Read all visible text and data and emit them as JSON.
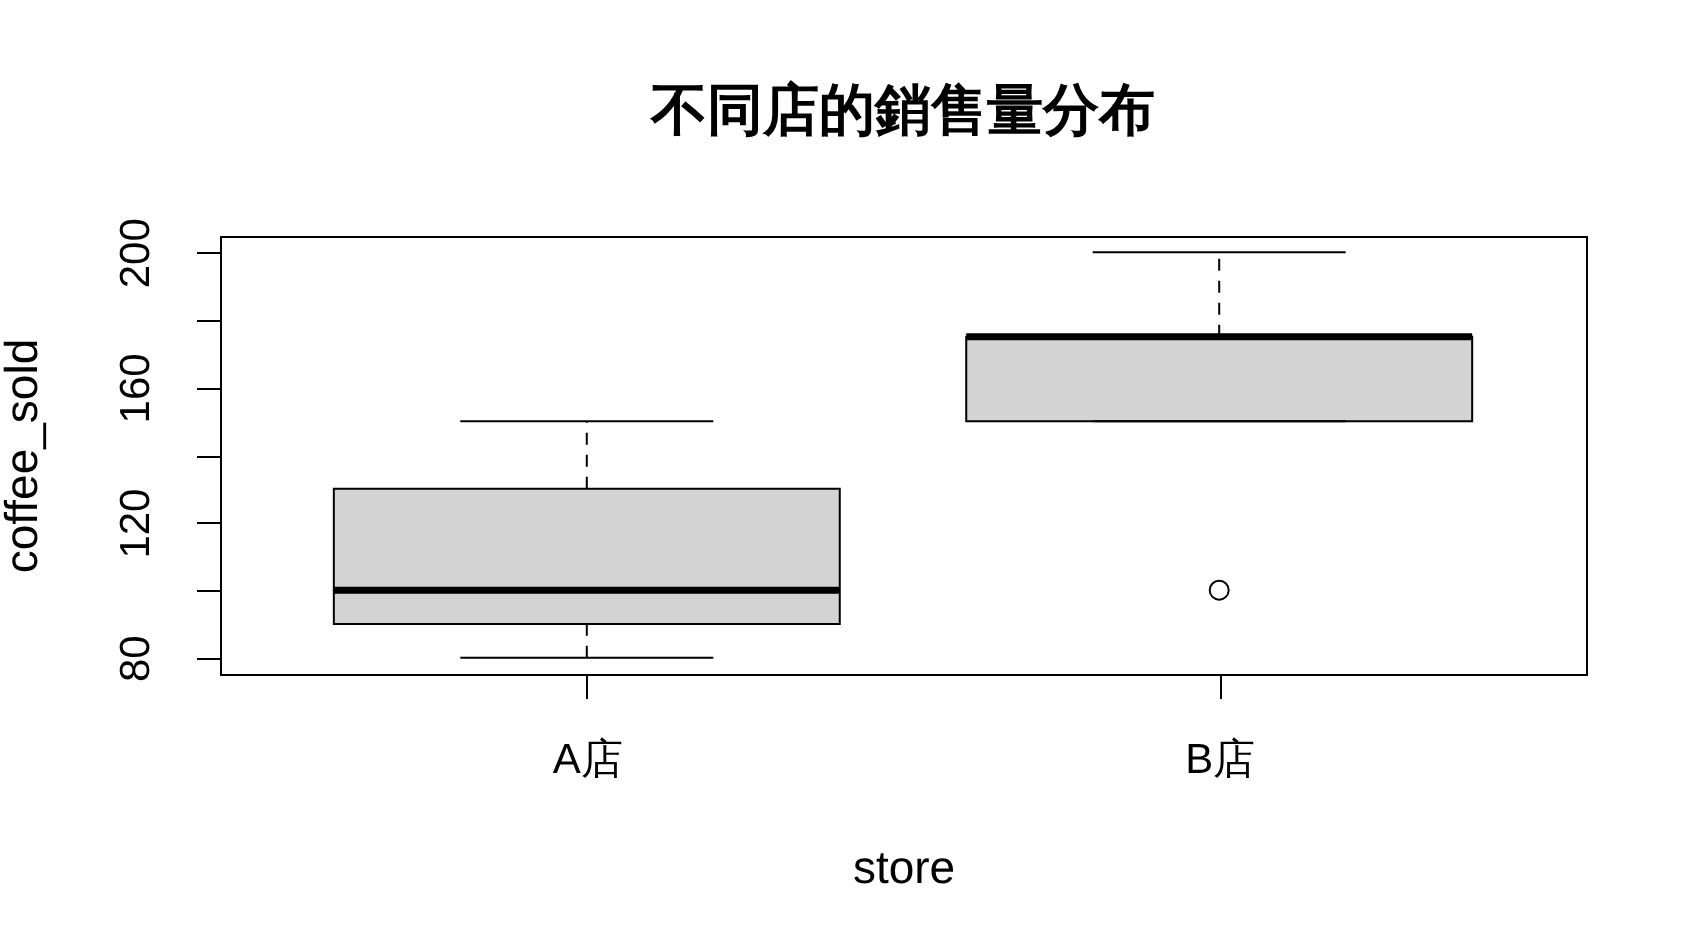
{
  "chart_data": {
    "type": "box",
    "title": "不同店的銷售量分布",
    "xlabel": "store",
    "ylabel": "coffee_sold",
    "categories": [
      "A店",
      "B店"
    ],
    "boxes": [
      {
        "low": 80,
        "q1": 90,
        "median": 100,
        "q3": 130,
        "high": 150
      },
      {
        "low": 150,
        "q1": 150,
        "median": 175,
        "q3": 175,
        "high": 200,
        "outliers": [
          100
        ]
      }
    ],
    "color": "#d3d3d3",
    "ylim": [
      75.2,
      204.8
    ],
    "yticks": [
      80,
      {
        "value": 100,
        "label": null
      },
      120,
      {
        "value": 140,
        "label": null
      },
      160,
      {
        "value": 180,
        "label": null
      },
      200
    ],
    "grid": false
  }
}
